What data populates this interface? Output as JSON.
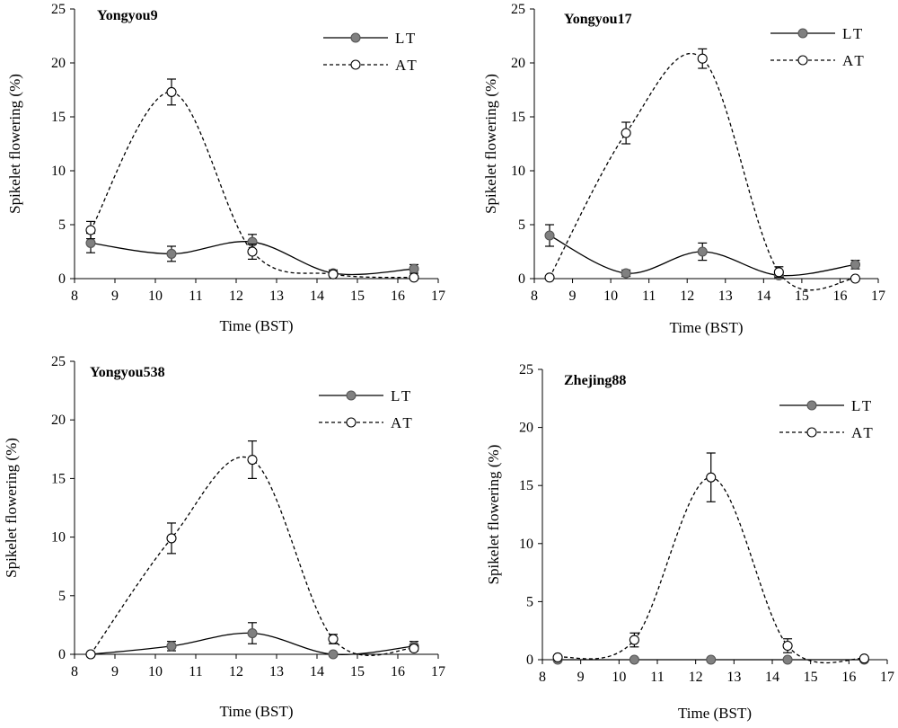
{
  "chart_data": [
    {
      "type": "line",
      "title": "Yongyou9",
      "xlabel": "Time (BST)",
      "ylabel": "Spikelet flowering (%)",
      "xlim": [
        8,
        17
      ],
      "ylim": [
        0,
        25
      ],
      "xticks": [
        8,
        9,
        10,
        11,
        12,
        13,
        14,
        15,
        16,
        17
      ],
      "yticks": [
        0,
        5,
        10,
        15,
        20,
        25
      ],
      "legend_position": "top-right",
      "series": [
        {
          "name": "LT",
          "style": "solid",
          "marker": "filled",
          "x": [
            8.4,
            10.4,
            12.4,
            14.4,
            16.4
          ],
          "y": [
            3.3,
            2.3,
            3.4,
            0.5,
            0.9
          ],
          "err": [
            0.9,
            0.7,
            0.7,
            0.3,
            0.4
          ]
        },
        {
          "name": "AT",
          "style": "dashed",
          "marker": "open",
          "x": [
            8.4,
            10.4,
            12.4,
            14.4,
            16.4
          ],
          "y": [
            4.5,
            17.3,
            2.5,
            0.4,
            0.1
          ],
          "err": [
            0.8,
            1.2,
            0.7,
            0.2,
            0.1
          ]
        }
      ]
    },
    {
      "type": "line",
      "title": "Yongyou17",
      "xlabel": "Time (BST)",
      "ylabel": "Spikelet flowering (%)",
      "xlim": [
        8,
        17
      ],
      "ylim": [
        0,
        25
      ],
      "xticks": [
        8,
        9,
        10,
        11,
        12,
        13,
        14,
        15,
        16,
        17
      ],
      "yticks": [
        0,
        5,
        10,
        15,
        20,
        25
      ],
      "legend_position": "top-right",
      "series": [
        {
          "name": "LT",
          "style": "solid",
          "marker": "filled",
          "x": [
            8.4,
            10.4,
            12.4,
            14.4,
            16.4
          ],
          "y": [
            4.0,
            0.5,
            2.5,
            0.3,
            1.3
          ],
          "err": [
            1.0,
            0.3,
            0.8,
            0.3,
            0.4
          ]
        },
        {
          "name": "AT",
          "style": "dashed",
          "marker": "open",
          "x": [
            8.4,
            10.4,
            12.4,
            14.4,
            16.4
          ],
          "y": [
            0.1,
            13.5,
            20.4,
            0.6,
            0.0
          ],
          "err": [
            0.1,
            1.0,
            0.9,
            0.5,
            0.0
          ]
        }
      ]
    },
    {
      "type": "line",
      "title": "Yongyou538",
      "xlabel": "Time (BST)",
      "ylabel": "Spikelet flowering (%)",
      "xlim": [
        8,
        17
      ],
      "ylim": [
        0,
        25
      ],
      "xticks": [
        8,
        9,
        10,
        11,
        12,
        13,
        14,
        15,
        16,
        17
      ],
      "yticks": [
        0,
        5,
        10,
        15,
        20,
        25
      ],
      "legend_position": "top-right",
      "series": [
        {
          "name": "LT",
          "style": "solid",
          "marker": "filled",
          "x": [
            8.4,
            10.4,
            12.4,
            14.4,
            16.4
          ],
          "y": [
            0.0,
            0.7,
            1.8,
            0.0,
            0.7
          ],
          "err": [
            0.0,
            0.4,
            0.9,
            0.0,
            0.4
          ]
        },
        {
          "name": "AT",
          "style": "dashed",
          "marker": "open",
          "x": [
            8.4,
            10.4,
            12.4,
            14.4,
            16.4
          ],
          "y": [
            0.0,
            9.9,
            16.6,
            1.3,
            0.5
          ],
          "err": [
            0.0,
            1.3,
            1.6,
            0.4,
            0.2
          ]
        }
      ]
    },
    {
      "type": "line",
      "title": "Zhejing88",
      "xlabel": "Time (BST)",
      "ylabel": "Spikelet flowering (%)",
      "xlim": [
        8,
        17
      ],
      "ylim": [
        0,
        25
      ],
      "xticks": [
        8,
        9,
        10,
        11,
        12,
        13,
        14,
        15,
        16,
        17
      ],
      "yticks": [
        0,
        5,
        10,
        15,
        20,
        25
      ],
      "legend_position": "top-right",
      "series": [
        {
          "name": "LT",
          "style": "solid",
          "marker": "filled",
          "x": [
            8.4,
            10.4,
            12.4,
            14.4,
            16.4
          ],
          "y": [
            0.0,
            0.0,
            0.0,
            0.0,
            0.0
          ],
          "err": [
            0,
            0,
            0,
            0,
            0
          ]
        },
        {
          "name": "AT",
          "style": "dashed",
          "marker": "open",
          "x": [
            8.4,
            10.4,
            12.4,
            14.4,
            16.4
          ],
          "y": [
            0.2,
            1.7,
            15.7,
            1.2,
            0.1
          ],
          "err": [
            0.1,
            0.6,
            2.1,
            0.6,
            0.1
          ]
        }
      ]
    }
  ]
}
